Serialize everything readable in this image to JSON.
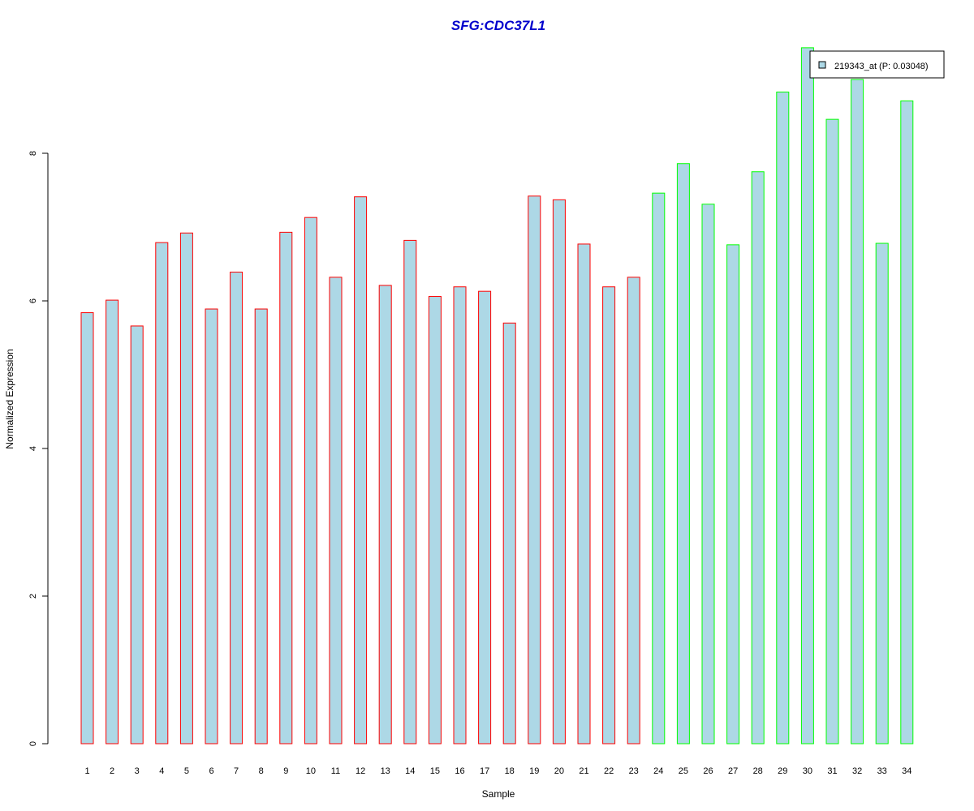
{
  "chart_data": {
    "type": "bar",
    "title": "SFG:CDC37L1",
    "xlabel": "Sample",
    "ylabel": "Normalized Expression",
    "ylim": [
      0,
      9.45
    ],
    "yticks": [
      0,
      2,
      4,
      6,
      8
    ],
    "grid": false,
    "legend_position": "top-right",
    "categories": [
      "1",
      "2",
      "3",
      "4",
      "5",
      "6",
      "7",
      "8",
      "9",
      "10",
      "11",
      "12",
      "13",
      "14",
      "15",
      "16",
      "17",
      "18",
      "19",
      "20",
      "21",
      "22",
      "23",
      "24",
      "25",
      "26",
      "27",
      "28",
      "29",
      "30",
      "31",
      "32",
      "33",
      "34"
    ],
    "values": [
      5.84,
      6.01,
      5.66,
      6.79,
      6.92,
      5.89,
      6.39,
      5.89,
      6.93,
      7.13,
      6.32,
      7.41,
      6.21,
      6.82,
      6.06,
      6.19,
      6.13,
      5.7,
      7.42,
      7.37,
      6.77,
      6.19,
      6.32,
      7.46,
      7.86,
      7.31,
      6.76,
      7.75,
      8.83,
      9.43,
      8.46,
      9.0,
      6.78,
      8.71
    ],
    "series": [
      {
        "name": "219343_at (P: 0.03048)",
        "fill": "#ADD8E6"
      }
    ],
    "colors": {
      "fill": "#ADD8E6",
      "group1_border": "#FF0000",
      "group2_border": "#00FF00",
      "title": "#0000CC"
    },
    "group1_count": 23
  }
}
